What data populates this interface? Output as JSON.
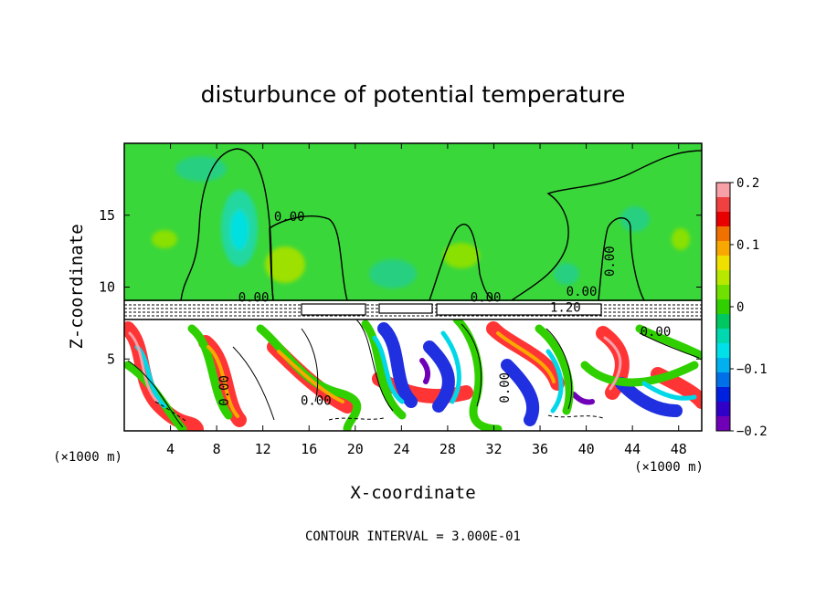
{
  "chart_data": {
    "type": "heatmap",
    "title": "disturbunce of potential temperature",
    "xlabel": "X-coordinate",
    "ylabel": "Z-coordinate",
    "x_unit": "(×1000 m)",
    "z_unit": "(×1000 m)",
    "xlim": [
      0,
      50
    ],
    "zlim": [
      0,
      20
    ],
    "x_ticks": [
      4,
      8,
      12,
      16,
      20,
      24,
      28,
      32,
      36,
      40,
      44,
      48
    ],
    "z_ticks": [
      5,
      10,
      15
    ],
    "colorbar": {
      "range": [
        -0.2,
        0.2
      ],
      "tick_values": [
        0.2,
        0.1,
        0,
        -0.1,
        -0.2
      ],
      "tick_labels": [
        "0.2",
        "0.1",
        "0",
        "−0.1",
        "−0.2"
      ],
      "colors": [
        "#f8a0a8",
        "#f04040",
        "#e80000",
        "#f07000",
        "#f8a800",
        "#f0e000",
        "#b8e800",
        "#70e000",
        "#30d000",
        "#00c860",
        "#00d8b0",
        "#00e0e8",
        "#00b0f0",
        "#0070e8",
        "#0020e0",
        "#3000c8",
        "#7000b8"
      ]
    },
    "contour_labels": [
      {
        "text": "0.00",
        "x": 14.3,
        "z": 14.6
      },
      {
        "text": "0.00",
        "x": 42.4,
        "z": 11.8,
        "rotated": true
      },
      {
        "text": "0.00",
        "x": 11.2,
        "z": 9.0
      },
      {
        "text": "0.00",
        "x": 31.3,
        "z": 9.0
      },
      {
        "text": "0.00",
        "x": 39.6,
        "z": 9.4
      },
      {
        "text": "1.20",
        "x": 38.2,
        "z": 8.3
      },
      {
        "text": "0.00",
        "x": 46.0,
        "z": 6.6
      },
      {
        "text": "0.00",
        "x": 9.0,
        "z": 2.8,
        "rotated": true
      },
      {
        "text": "0.00",
        "x": 16.6,
        "z": 1.8
      },
      {
        "text": "0.00",
        "x": 33.3,
        "z": 3.0,
        "rotated": true
      }
    ],
    "contour_interval_text": "CONTOUR INTERVAL = 3.000E-01"
  }
}
